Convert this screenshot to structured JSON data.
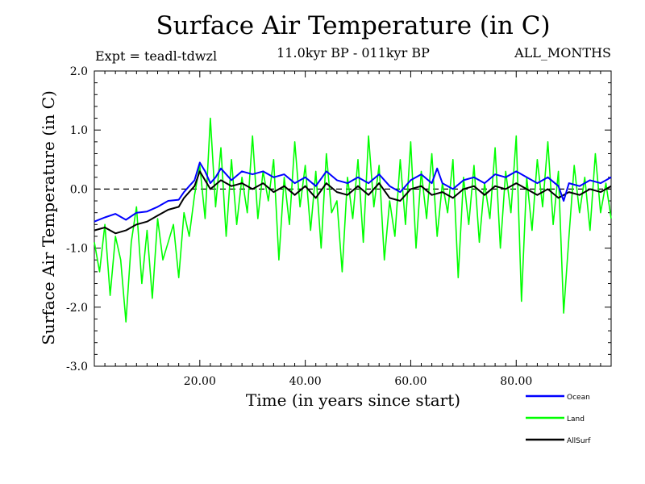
{
  "chart_data": {
    "type": "line",
    "title": "Surface Air Temperature (in C)",
    "subtitle_left": "Expt = teadl-tdwzl",
    "subtitle_center": "11.0kyr BP - 011kyr BP",
    "subtitle_right": "ALL_MONTHS",
    "xlabel": "Time (in years since start)",
    "ylabel": "Surface Air Temperature (in C)",
    "xlim": [
      0,
      98
    ],
    "ylim": [
      -3.0,
      2.0
    ],
    "xticks": [
      20,
      40,
      60,
      80
    ],
    "xtick_labels": [
      "20.00",
      "40.00",
      "60.00",
      "80.00"
    ],
    "yticks": [
      2.0,
      1.0,
      0.0,
      -1.0,
      -2.0,
      -3.0
    ],
    "ytick_labels": [
      "2.0",
      "1.0",
      "0.0",
      "-1.0",
      "-2.0",
      "-3.0"
    ],
    "reference_line": {
      "y": 0.0,
      "style": "dashed"
    },
    "legend_position": "bottom-right, outside plot",
    "series": [
      {
        "name": "Ocean",
        "color": "#0000ff",
        "x": [
          0,
          2,
          4,
          6,
          8,
          10,
          12,
          14,
          16,
          17,
          18,
          19,
          20,
          21,
          22,
          23,
          24,
          25,
          26,
          28,
          30,
          32,
          34,
          36,
          38,
          40,
          42,
          44,
          46,
          48,
          50,
          52,
          54,
          56,
          58,
          60,
          62,
          64,
          65,
          66,
          68,
          70,
          72,
          74,
          76,
          78,
          80,
          82,
          84,
          86,
          88,
          89,
          90,
          92,
          94,
          96,
          98
        ],
        "values": [
          -0.55,
          -0.48,
          -0.42,
          -0.52,
          -0.4,
          -0.38,
          -0.3,
          -0.2,
          -0.18,
          -0.05,
          0.05,
          0.15,
          0.45,
          0.3,
          0.1,
          0.2,
          0.35,
          0.25,
          0.15,
          0.3,
          0.25,
          0.3,
          0.2,
          0.25,
          0.1,
          0.2,
          0.05,
          0.3,
          0.15,
          0.1,
          0.2,
          0.1,
          0.25,
          0.05,
          -0.05,
          0.15,
          0.25,
          0.1,
          0.35,
          0.1,
          0.0,
          0.15,
          0.2,
          0.1,
          0.25,
          0.2,
          0.3,
          0.2,
          0.1,
          0.2,
          0.05,
          -0.2,
          0.1,
          0.05,
          0.15,
          0.1,
          0.2
        ]
      },
      {
        "name": "Land",
        "color": "#00ff00",
        "x": [
          0,
          1,
          2,
          3,
          4,
          5,
          6,
          7,
          8,
          9,
          10,
          11,
          12,
          13,
          14,
          15,
          16,
          17,
          18,
          19,
          20,
          21,
          22,
          23,
          24,
          25,
          26,
          27,
          28,
          29,
          30,
          31,
          32,
          33,
          34,
          35,
          36,
          37,
          38,
          39,
          40,
          41,
          42,
          43,
          44,
          45,
          46,
          47,
          48,
          49,
          50,
          51,
          52,
          53,
          54,
          55,
          56,
          57,
          58,
          59,
          60,
          61,
          62,
          63,
          64,
          65,
          66,
          67,
          68,
          69,
          70,
          71,
          72,
          73,
          74,
          75,
          76,
          77,
          78,
          79,
          80,
          81,
          82,
          83,
          84,
          85,
          86,
          87,
          88,
          89,
          90,
          91,
          92,
          93,
          94,
          95,
          96,
          97,
          98
        ],
        "values": [
          -0.9,
          -1.4,
          -0.6,
          -1.8,
          -0.8,
          -1.2,
          -2.25,
          -0.9,
          -0.3,
          -1.6,
          -0.7,
          -1.85,
          -0.5,
          -1.2,
          -0.9,
          -0.6,
          -1.5,
          -0.4,
          -0.8,
          -0.1,
          0.4,
          -0.5,
          1.2,
          -0.3,
          0.7,
          -0.8,
          0.5,
          -0.6,
          0.2,
          -0.4,
          0.9,
          -0.5,
          0.3,
          -0.2,
          0.5,
          -1.2,
          0.2,
          -0.6,
          0.8,
          -0.3,
          0.4,
          -0.7,
          0.3,
          -1.0,
          0.6,
          -0.4,
          -0.2,
          -1.4,
          0.2,
          -0.5,
          0.5,
          -0.9,
          0.9,
          -0.3,
          0.4,
          -1.2,
          -0.2,
          -0.8,
          0.5,
          -0.6,
          0.8,
          -1.0,
          0.3,
          -0.5,
          0.6,
          -0.8,
          0.1,
          -0.4,
          0.5,
          -1.5,
          0.2,
          -0.6,
          0.4,
          -0.9,
          0.1,
          -0.5,
          0.7,
          -1.0,
          0.3,
          -0.4,
          0.9,
          -1.9,
          0.2,
          -0.7,
          0.5,
          -0.3,
          0.8,
          -0.6,
          0.3,
          -2.1,
          -0.8,
          0.4,
          -0.4,
          0.2,
          -0.7,
          0.6,
          -0.4,
          0.1,
          -0.5
        ]
      },
      {
        "name": "AllSurf",
        "color": "#000000",
        "x": [
          0,
          2,
          4,
          6,
          8,
          10,
          12,
          14,
          16,
          17,
          18,
          19,
          20,
          22,
          24,
          26,
          28,
          30,
          32,
          34,
          36,
          38,
          40,
          42,
          44,
          46,
          48,
          50,
          52,
          54,
          56,
          58,
          60,
          62,
          64,
          66,
          68,
          70,
          72,
          74,
          76,
          78,
          80,
          82,
          84,
          86,
          88,
          90,
          92,
          94,
          96,
          98
        ],
        "values": [
          -0.7,
          -0.65,
          -0.75,
          -0.7,
          -0.6,
          -0.55,
          -0.45,
          -0.35,
          -0.3,
          -0.15,
          -0.05,
          0.05,
          0.3,
          0.0,
          0.15,
          0.05,
          0.1,
          0.0,
          0.1,
          -0.05,
          0.05,
          -0.1,
          0.05,
          -0.15,
          0.1,
          -0.05,
          -0.1,
          0.05,
          -0.1,
          0.1,
          -0.15,
          -0.2,
          0.0,
          0.05,
          -0.1,
          -0.05,
          -0.15,
          0.0,
          0.05,
          -0.1,
          0.05,
          0.0,
          0.1,
          0.0,
          -0.1,
          0.0,
          -0.15,
          -0.05,
          -0.1,
          0.0,
          -0.05,
          0.05
        ]
      }
    ]
  }
}
